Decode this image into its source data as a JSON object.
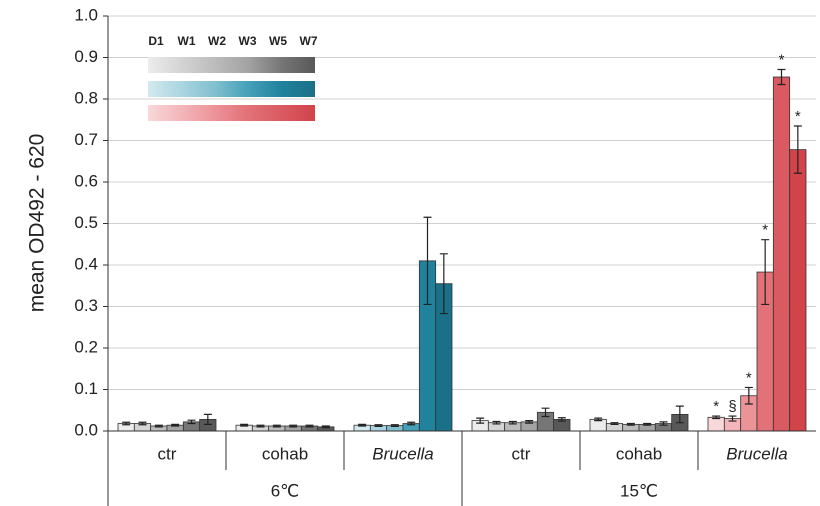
{
  "chart_data": {
    "type": "bar",
    "ylabel": "mean OD492 - 620",
    "ylim": [
      0,
      1
    ],
    "yticks": [
      {
        "value": 0,
        "label": "0.0"
      },
      0.1,
      0.2,
      0.3,
      0.4,
      0.5,
      0.6,
      0.7,
      0.8,
      0.9,
      {
        "value": 1,
        "label": "1.0"
      }
    ],
    "grid": true,
    "legend_labels": [
      "D1",
      "W1",
      "W2",
      "W3",
      "W5",
      "W7"
    ],
    "palettes": {
      "grey": [
        "#ececec",
        "#d4d4d4",
        "#bcbcbc",
        "#a3a3a3",
        "#767676",
        "#595959"
      ],
      "teal": [
        "#d3e9ef",
        "#abd5e0",
        "#82bfcf",
        "#45a0b8",
        "#21829d",
        "#1a7088"
      ],
      "red": [
        "#f9d8da",
        "#f3b6ba",
        "#ec9398",
        "#e27178",
        "#da5a61",
        "#d0444a"
      ]
    },
    "legend_palettes": [
      "grey",
      "teal",
      "red"
    ],
    "groups": [
      {
        "name": "6℃",
        "subgroups": [
          {
            "category": "ctr",
            "palette": "grey",
            "values": [
              0.018,
              0.018,
              0.012,
              0.014,
              0.022,
              0.028
            ],
            "errors": [
              0.003,
              0.003,
              0.002,
              0.002,
              0.004,
              0.012
            ]
          },
          {
            "category": "cohab",
            "palette": "grey",
            "values": [
              0.014,
              0.012,
              0.012,
              0.012,
              0.012,
              0.01
            ],
            "errors": [
              0.002,
              0.002,
              0.002,
              0.002,
              0.002,
              0.002
            ]
          },
          {
            "category": "Brucella",
            "italic": true,
            "palette": "teal",
            "values": [
              0.014,
              0.013,
              0.013,
              0.018,
              0.41,
              0.355
            ],
            "errors": [
              0.002,
              0.002,
              0.002,
              0.003,
              0.105,
              0.072
            ]
          }
        ]
      },
      {
        "name": "15℃",
        "subgroups": [
          {
            "category": "ctr",
            "palette": "grey",
            "values": [
              0.025,
              0.02,
              0.02,
              0.022,
              0.045,
              0.028
            ],
            "errors": [
              0.006,
              0.003,
              0.003,
              0.003,
              0.01,
              0.004
            ]
          },
          {
            "category": "cohab",
            "palette": "grey",
            "values": [
              0.028,
              0.018,
              0.016,
              0.016,
              0.018,
              0.04
            ],
            "errors": [
              0.003,
              0.002,
              0.002,
              0.002,
              0.004,
              0.02
            ]
          },
          {
            "category": "Brucella",
            "italic": true,
            "palette": "red",
            "values": [
              0.033,
              0.03,
              0.085,
              0.383,
              0.853,
              0.678
            ],
            "errors": [
              0.003,
              0.006,
              0.02,
              0.078,
              0.018,
              0.057
            ],
            "markers": [
              "*",
              "§",
              "*",
              "*",
              "*",
              "*"
            ]
          }
        ]
      }
    ]
  }
}
